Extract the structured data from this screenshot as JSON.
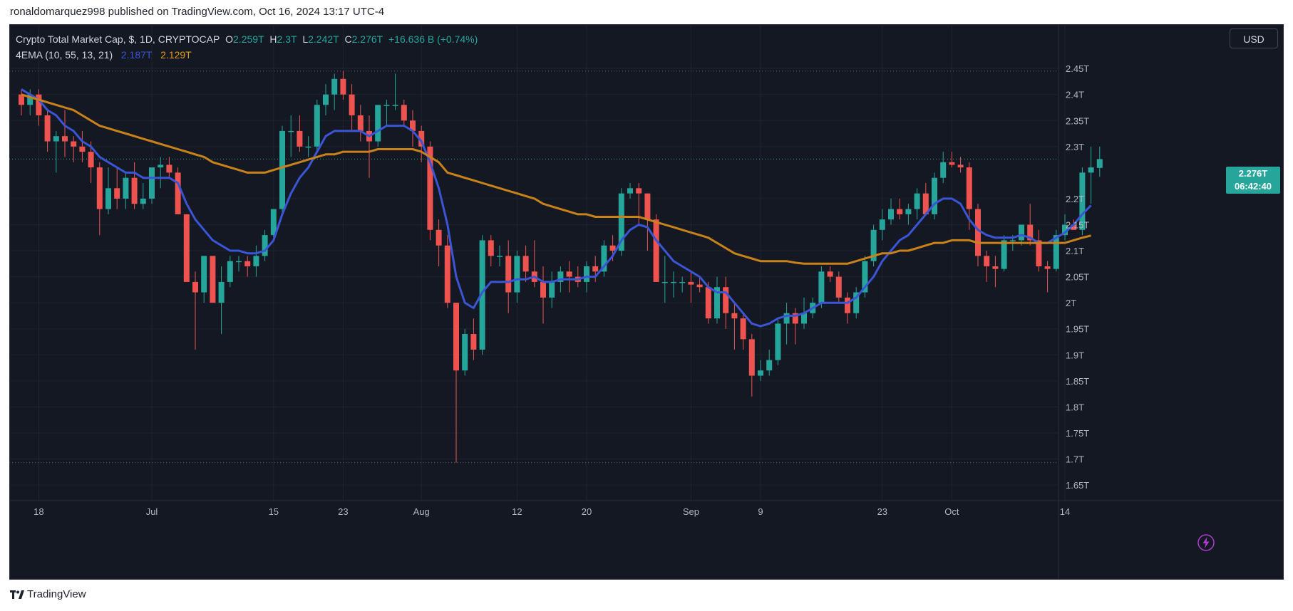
{
  "publisher_line": "ronaldomarquez998 published on TradingView.com, Oct 16, 2024 13:17 UTC-4",
  "footer": {
    "logo_text": "TradingView"
  },
  "legend": {
    "symbol": "Crypto Total Market Cap, $, 1D, CRYPTOCAP",
    "o_label": "O",
    "o_value": "2.259T",
    "h_label": "H",
    "h_value": "2.3T",
    "l_label": "L",
    "l_value": "2.242T",
    "c_label": "C",
    "c_value": "2.276T",
    "change": "+16.636 B (+0.74%)",
    "indicator": "4EMA (10, 55, 13, 21)",
    "ema_fast_value": "2.187T",
    "ema_slow_value": "2.129T"
  },
  "currency_button": "USD",
  "last_price": {
    "value": "2.276T",
    "countdown": "06:42:40"
  },
  "colors": {
    "background": "#141823",
    "grid": "#1f2330",
    "up": "#26a69a",
    "down": "#ef5350",
    "ema_fast": "#3a55d6",
    "ema_slow": "#c9821a",
    "axis_text": "#b2b5be"
  },
  "chart_data": {
    "type": "candlestick",
    "title": "Crypto Total Market Cap, $, 1D, CRYPTOCAP",
    "y_unit": "T",
    "ylim": [
      1.62,
      2.535
    ],
    "y_ticks": [
      {
        "v": 2.45,
        "label": "2.45T"
      },
      {
        "v": 2.4,
        "label": "2.4T"
      },
      {
        "v": 2.35,
        "label": "2.35T"
      },
      {
        "v": 2.3,
        "label": "2.3T"
      },
      {
        "v": 2.2,
        "label": "2.2T"
      },
      {
        "v": 2.15,
        "label": "2.15T"
      },
      {
        "v": 2.1,
        "label": "2.1T"
      },
      {
        "v": 2.05,
        "label": "2.05T"
      },
      {
        "v": 2.0,
        "label": "2T"
      },
      {
        "v": 1.95,
        "label": "1.95T"
      },
      {
        "v": 1.9,
        "label": "1.9T"
      },
      {
        "v": 1.85,
        "label": "1.85T"
      },
      {
        "v": 1.8,
        "label": "1.8T"
      },
      {
        "v": 1.75,
        "label": "1.75T"
      },
      {
        "v": 1.7,
        "label": "1.7T"
      },
      {
        "v": 1.65,
        "label": "1.65T"
      }
    ],
    "x_ticks": [
      {
        "i": 2,
        "label": "18"
      },
      {
        "i": 15,
        "label": "Jul"
      },
      {
        "i": 29,
        "label": "15"
      },
      {
        "i": 37,
        "label": "23"
      },
      {
        "i": 46,
        "label": "Aug"
      },
      {
        "i": 57,
        "label": "12"
      },
      {
        "i": 65,
        "label": "20"
      },
      {
        "i": 77,
        "label": "Sep"
      },
      {
        "i": 85,
        "label": "9"
      },
      {
        "i": 99,
        "label": "23"
      },
      {
        "i": 107,
        "label": "Oct"
      },
      {
        "i": 120,
        "label": "14"
      }
    ],
    "dotted_levels": [
      2.445,
      1.693
    ],
    "current_price_line": 2.276,
    "candles": [
      {
        "o": 2.4,
        "h": 2.41,
        "l": 2.36,
        "c": 2.38
      },
      {
        "o": 2.38,
        "h": 2.41,
        "l": 2.36,
        "c": 2.4
      },
      {
        "o": 2.4,
        "h": 2.41,
        "l": 2.34,
        "c": 2.36
      },
      {
        "o": 2.36,
        "h": 2.37,
        "l": 2.29,
        "c": 2.31
      },
      {
        "o": 2.31,
        "h": 2.33,
        "l": 2.25,
        "c": 2.32
      },
      {
        "o": 2.32,
        "h": 2.37,
        "l": 2.28,
        "c": 2.31
      },
      {
        "o": 2.31,
        "h": 2.32,
        "l": 2.27,
        "c": 2.3
      },
      {
        "o": 2.3,
        "h": 2.33,
        "l": 2.27,
        "c": 2.29
      },
      {
        "o": 2.29,
        "h": 2.31,
        "l": 2.23,
        "c": 2.26
      },
      {
        "o": 2.26,
        "h": 2.27,
        "l": 2.13,
        "c": 2.18
      },
      {
        "o": 2.18,
        "h": 2.26,
        "l": 2.17,
        "c": 2.22
      },
      {
        "o": 2.22,
        "h": 2.26,
        "l": 2.18,
        "c": 2.2
      },
      {
        "o": 2.2,
        "h": 2.25,
        "l": 2.18,
        "c": 2.24
      },
      {
        "o": 2.24,
        "h": 2.27,
        "l": 2.18,
        "c": 2.19
      },
      {
        "o": 2.19,
        "h": 2.23,
        "l": 2.18,
        "c": 2.2
      },
      {
        "o": 2.2,
        "h": 2.26,
        "l": 2.19,
        "c": 2.26
      },
      {
        "o": 2.26,
        "h": 2.28,
        "l": 2.22,
        "c": 2.265
      },
      {
        "o": 2.265,
        "h": 2.28,
        "l": 2.24,
        "c": 2.25
      },
      {
        "o": 2.25,
        "h": 2.26,
        "l": 2.17,
        "c": 2.17
      },
      {
        "o": 2.17,
        "h": 2.17,
        "l": 2.04,
        "c": 2.04
      },
      {
        "o": 2.04,
        "h": 2.06,
        "l": 1.91,
        "c": 2.02
      },
      {
        "o": 2.02,
        "h": 2.09,
        "l": 2.0,
        "c": 2.09
      },
      {
        "o": 2.09,
        "h": 2.09,
        "l": 2.0,
        "c": 2.0
      },
      {
        "o": 2.0,
        "h": 2.07,
        "l": 1.94,
        "c": 2.04
      },
      {
        "o": 2.04,
        "h": 2.09,
        "l": 2.03,
        "c": 2.08
      },
      {
        "o": 2.08,
        "h": 2.09,
        "l": 2.06,
        "c": 2.08
      },
      {
        "o": 2.08,
        "h": 2.09,
        "l": 2.05,
        "c": 2.07
      },
      {
        "o": 2.07,
        "h": 2.11,
        "l": 2.05,
        "c": 2.09
      },
      {
        "o": 2.09,
        "h": 2.14,
        "l": 2.08,
        "c": 2.13
      },
      {
        "o": 2.13,
        "h": 2.18,
        "l": 2.12,
        "c": 2.18
      },
      {
        "o": 2.18,
        "h": 2.34,
        "l": 2.17,
        "c": 2.33
      },
      {
        "o": 2.33,
        "h": 2.36,
        "l": 2.28,
        "c": 2.33
      },
      {
        "o": 2.33,
        "h": 2.36,
        "l": 2.29,
        "c": 2.3
      },
      {
        "o": 2.3,
        "h": 2.32,
        "l": 2.28,
        "c": 2.3
      },
      {
        "o": 2.3,
        "h": 2.39,
        "l": 2.29,
        "c": 2.38
      },
      {
        "o": 2.38,
        "h": 2.42,
        "l": 2.36,
        "c": 2.4
      },
      {
        "o": 2.4,
        "h": 2.44,
        "l": 2.37,
        "c": 2.43
      },
      {
        "o": 2.43,
        "h": 2.445,
        "l": 2.39,
        "c": 2.4
      },
      {
        "o": 2.4,
        "h": 2.42,
        "l": 2.33,
        "c": 2.36
      },
      {
        "o": 2.36,
        "h": 2.38,
        "l": 2.31,
        "c": 2.33
      },
      {
        "o": 2.33,
        "h": 2.36,
        "l": 2.24,
        "c": 2.31
      },
      {
        "o": 2.31,
        "h": 2.38,
        "l": 2.3,
        "c": 2.38
      },
      {
        "o": 2.38,
        "h": 2.39,
        "l": 2.34,
        "c": 2.38
      },
      {
        "o": 2.38,
        "h": 2.44,
        "l": 2.37,
        "c": 2.38
      },
      {
        "o": 2.38,
        "h": 2.39,
        "l": 2.34,
        "c": 2.35
      },
      {
        "o": 2.35,
        "h": 2.37,
        "l": 2.3,
        "c": 2.33
      },
      {
        "o": 2.33,
        "h": 2.34,
        "l": 2.27,
        "c": 2.3
      },
      {
        "o": 2.3,
        "h": 2.31,
        "l": 2.12,
        "c": 2.14
      },
      {
        "o": 2.14,
        "h": 2.16,
        "l": 2.07,
        "c": 2.11
      },
      {
        "o": 2.11,
        "h": 2.13,
        "l": 1.99,
        "c": 2.0
      },
      {
        "o": 2.0,
        "h": 2.0,
        "l": 1.693,
        "c": 1.87
      },
      {
        "o": 1.87,
        "h": 1.95,
        "l": 1.86,
        "c": 1.94
      },
      {
        "o": 1.94,
        "h": 1.97,
        "l": 1.89,
        "c": 1.91
      },
      {
        "o": 1.91,
        "h": 2.13,
        "l": 1.9,
        "c": 2.12
      },
      {
        "o": 2.12,
        "h": 2.13,
        "l": 2.07,
        "c": 2.09
      },
      {
        "o": 2.09,
        "h": 2.11,
        "l": 2.07,
        "c": 2.09
      },
      {
        "o": 2.09,
        "h": 2.12,
        "l": 1.98,
        "c": 2.02
      },
      {
        "o": 2.02,
        "h": 2.1,
        "l": 2.0,
        "c": 2.09
      },
      {
        "o": 2.09,
        "h": 2.11,
        "l": 2.04,
        "c": 2.06
      },
      {
        "o": 2.06,
        "h": 2.12,
        "l": 2.03,
        "c": 2.04
      },
      {
        "o": 2.04,
        "h": 2.07,
        "l": 1.96,
        "c": 2.01
      },
      {
        "o": 2.01,
        "h": 2.06,
        "l": 1.99,
        "c": 2.04
      },
      {
        "o": 2.04,
        "h": 2.07,
        "l": 2.02,
        "c": 2.06
      },
      {
        "o": 2.06,
        "h": 2.08,
        "l": 2.02,
        "c": 2.05
      },
      {
        "o": 2.05,
        "h": 2.07,
        "l": 2.03,
        "c": 2.04
      },
      {
        "o": 2.04,
        "h": 2.08,
        "l": 2.02,
        "c": 2.07
      },
      {
        "o": 2.07,
        "h": 2.09,
        "l": 2.04,
        "c": 2.06
      },
      {
        "o": 2.06,
        "h": 2.12,
        "l": 2.05,
        "c": 2.11
      },
      {
        "o": 2.11,
        "h": 2.13,
        "l": 2.08,
        "c": 2.1
      },
      {
        "o": 2.1,
        "h": 2.22,
        "l": 2.09,
        "c": 2.21
      },
      {
        "o": 2.21,
        "h": 2.23,
        "l": 2.2,
        "c": 2.22
      },
      {
        "o": 2.22,
        "h": 2.23,
        "l": 2.15,
        "c": 2.21
      },
      {
        "o": 2.21,
        "h": 2.21,
        "l": 2.1,
        "c": 2.16
      },
      {
        "o": 2.16,
        "h": 2.17,
        "l": 2.04,
        "c": 2.04
      },
      {
        "o": 2.04,
        "h": 2.09,
        "l": 2.0,
        "c": 2.04
      },
      {
        "o": 2.04,
        "h": 2.06,
        "l": 2.01,
        "c": 2.04
      },
      {
        "o": 2.04,
        "h": 2.05,
        "l": 2.02,
        "c": 2.04
      },
      {
        "o": 2.04,
        "h": 2.06,
        "l": 2.0,
        "c": 2.035
      },
      {
        "o": 2.035,
        "h": 2.05,
        "l": 2.02,
        "c": 2.03
      },
      {
        "o": 2.03,
        "h": 2.04,
        "l": 1.96,
        "c": 1.97
      },
      {
        "o": 1.97,
        "h": 2.05,
        "l": 1.96,
        "c": 2.03
      },
      {
        "o": 2.03,
        "h": 2.05,
        "l": 1.95,
        "c": 1.98
      },
      {
        "o": 1.98,
        "h": 2.0,
        "l": 1.91,
        "c": 1.97
      },
      {
        "o": 1.97,
        "h": 1.98,
        "l": 1.91,
        "c": 1.93
      },
      {
        "o": 1.93,
        "h": 1.94,
        "l": 1.82,
        "c": 1.86
      },
      {
        "o": 1.86,
        "h": 1.89,
        "l": 1.85,
        "c": 1.87
      },
      {
        "o": 1.87,
        "h": 1.91,
        "l": 1.86,
        "c": 1.89
      },
      {
        "o": 1.89,
        "h": 1.97,
        "l": 1.88,
        "c": 1.96
      },
      {
        "o": 1.96,
        "h": 2.0,
        "l": 1.92,
        "c": 1.98
      },
      {
        "o": 1.98,
        "h": 1.99,
        "l": 1.92,
        "c": 1.96
      },
      {
        "o": 1.96,
        "h": 2.01,
        "l": 1.95,
        "c": 1.98
      },
      {
        "o": 1.98,
        "h": 2.01,
        "l": 1.97,
        "c": 2.0
      },
      {
        "o": 2.0,
        "h": 2.07,
        "l": 1.99,
        "c": 2.06
      },
      {
        "o": 2.06,
        "h": 2.07,
        "l": 2.04,
        "c": 2.05
      },
      {
        "o": 2.05,
        "h": 2.06,
        "l": 2.0,
        "c": 2.01
      },
      {
        "o": 2.01,
        "h": 2.02,
        "l": 1.96,
        "c": 1.98
      },
      {
        "o": 1.98,
        "h": 2.03,
        "l": 1.97,
        "c": 2.02
      },
      {
        "o": 2.02,
        "h": 2.09,
        "l": 2.01,
        "c": 2.08
      },
      {
        "o": 2.08,
        "h": 2.15,
        "l": 2.07,
        "c": 2.14
      },
      {
        "o": 2.14,
        "h": 2.18,
        "l": 2.12,
        "c": 2.16
      },
      {
        "o": 2.16,
        "h": 2.2,
        "l": 2.15,
        "c": 2.18
      },
      {
        "o": 2.18,
        "h": 2.2,
        "l": 2.16,
        "c": 2.17
      },
      {
        "o": 2.17,
        "h": 2.19,
        "l": 2.15,
        "c": 2.18
      },
      {
        "o": 2.18,
        "h": 2.22,
        "l": 2.16,
        "c": 2.21
      },
      {
        "o": 2.21,
        "h": 2.23,
        "l": 2.17,
        "c": 2.17
      },
      {
        "o": 2.17,
        "h": 2.25,
        "l": 2.16,
        "c": 2.24
      },
      {
        "o": 2.24,
        "h": 2.29,
        "l": 2.23,
        "c": 2.27
      },
      {
        "o": 2.27,
        "h": 2.29,
        "l": 2.26,
        "c": 2.265
      },
      {
        "o": 2.265,
        "h": 2.28,
        "l": 2.25,
        "c": 2.26
      },
      {
        "o": 2.26,
        "h": 2.27,
        "l": 2.14,
        "c": 2.18
      },
      {
        "o": 2.18,
        "h": 2.19,
        "l": 2.07,
        "c": 2.09
      },
      {
        "o": 2.09,
        "h": 2.1,
        "l": 2.04,
        "c": 2.07
      },
      {
        "o": 2.07,
        "h": 2.09,
        "l": 2.03,
        "c": 2.065
      },
      {
        "o": 2.065,
        "h": 2.13,
        "l": 2.06,
        "c": 2.12
      },
      {
        "o": 2.12,
        "h": 2.13,
        "l": 2.1,
        "c": 2.12
      },
      {
        "o": 2.12,
        "h": 2.15,
        "l": 2.11,
        "c": 2.15
      },
      {
        "o": 2.15,
        "h": 2.19,
        "l": 2.11,
        "c": 2.12
      },
      {
        "o": 2.12,
        "h": 2.14,
        "l": 2.06,
        "c": 2.07
      },
      {
        "o": 2.07,
        "h": 2.08,
        "l": 2.02,
        "c": 2.065
      },
      {
        "o": 2.065,
        "h": 2.14,
        "l": 2.06,
        "c": 2.13
      },
      {
        "o": 2.13,
        "h": 2.17,
        "l": 2.12,
        "c": 2.15
      },
      {
        "o": 2.15,
        "h": 2.16,
        "l": 2.14,
        "c": 2.14
      },
      {
        "o": 2.14,
        "h": 2.26,
        "l": 2.13,
        "c": 2.25
      },
      {
        "o": 2.25,
        "h": 2.3,
        "l": 2.19,
        "c": 2.26
      },
      {
        "o": 2.259,
        "h": 2.3,
        "l": 2.242,
        "c": 2.276
      }
    ],
    "series": [
      {
        "name": "EMA 10",
        "color": "#3a55d6",
        "values": [
          2.41,
          2.4,
          2.39,
          2.37,
          2.36,
          2.34,
          2.33,
          2.31,
          2.3,
          2.28,
          2.27,
          2.26,
          2.25,
          2.25,
          2.24,
          2.24,
          2.24,
          2.24,
          2.23,
          2.19,
          2.16,
          2.14,
          2.12,
          2.11,
          2.1,
          2.1,
          2.095,
          2.095,
          2.1,
          2.12,
          2.17,
          2.21,
          2.24,
          2.26,
          2.29,
          2.32,
          2.33,
          2.33,
          2.33,
          2.33,
          2.32,
          2.33,
          2.34,
          2.34,
          2.34,
          2.33,
          2.31,
          2.27,
          2.22,
          2.15,
          2.05,
          2.0,
          1.99,
          2.02,
          2.04,
          2.04,
          2.04,
          2.045,
          2.045,
          2.05,
          2.04,
          2.04,
          2.045,
          2.045,
          2.045,
          2.05,
          2.05,
          2.07,
          2.09,
          2.12,
          2.14,
          2.15,
          2.145,
          2.12,
          2.1,
          2.08,
          2.07,
          2.06,
          2.05,
          2.03,
          2.02,
          2.02,
          2.0,
          1.98,
          1.96,
          1.955,
          1.96,
          1.97,
          1.975,
          1.975,
          1.98,
          1.99,
          2.0,
          2.0,
          2.0,
          2.0,
          2.01,
          2.03,
          2.05,
          2.08,
          2.1,
          2.12,
          2.13,
          2.15,
          2.17,
          2.19,
          2.2,
          2.2,
          2.19,
          2.16,
          2.14,
          2.13,
          2.125,
          2.125,
          2.125,
          2.13,
          2.125,
          2.115,
          2.115,
          2.125,
          2.135,
          2.15,
          2.17,
          2.187
        ]
      },
      {
        "name": "EMA 55",
        "color": "#c9821a",
        "values": [
          2.4,
          2.395,
          2.39,
          2.385,
          2.38,
          2.375,
          2.37,
          2.36,
          2.35,
          2.34,
          2.335,
          2.33,
          2.325,
          2.32,
          2.315,
          2.31,
          2.305,
          2.3,
          2.295,
          2.29,
          2.285,
          2.28,
          2.27,
          2.265,
          2.26,
          2.255,
          2.25,
          2.25,
          2.25,
          2.255,
          2.26,
          2.265,
          2.27,
          2.275,
          2.28,
          2.285,
          2.285,
          2.29,
          2.29,
          2.29,
          2.29,
          2.295,
          2.295,
          2.295,
          2.295,
          2.295,
          2.29,
          2.28,
          2.27,
          2.25,
          2.245,
          2.24,
          2.235,
          2.23,
          2.225,
          2.22,
          2.215,
          2.21,
          2.205,
          2.2,
          2.19,
          2.185,
          2.18,
          2.175,
          2.17,
          2.17,
          2.165,
          2.165,
          2.165,
          2.165,
          2.165,
          2.165,
          2.16,
          2.155,
          2.15,
          2.145,
          2.14,
          2.135,
          2.13,
          2.125,
          2.115,
          2.105,
          2.095,
          2.09,
          2.085,
          2.08,
          2.08,
          2.08,
          2.08,
          2.077,
          2.075,
          2.075,
          2.075,
          2.075,
          2.075,
          2.075,
          2.08,
          2.085,
          2.09,
          2.095,
          2.095,
          2.1,
          2.1,
          2.105,
          2.11,
          2.115,
          2.115,
          2.12,
          2.12,
          2.12,
          2.115,
          2.115,
          2.115,
          2.115,
          2.115,
          2.115,
          2.115,
          2.115,
          2.115,
          2.115,
          2.115,
          2.12,
          2.125,
          2.129
        ]
      }
    ]
  }
}
